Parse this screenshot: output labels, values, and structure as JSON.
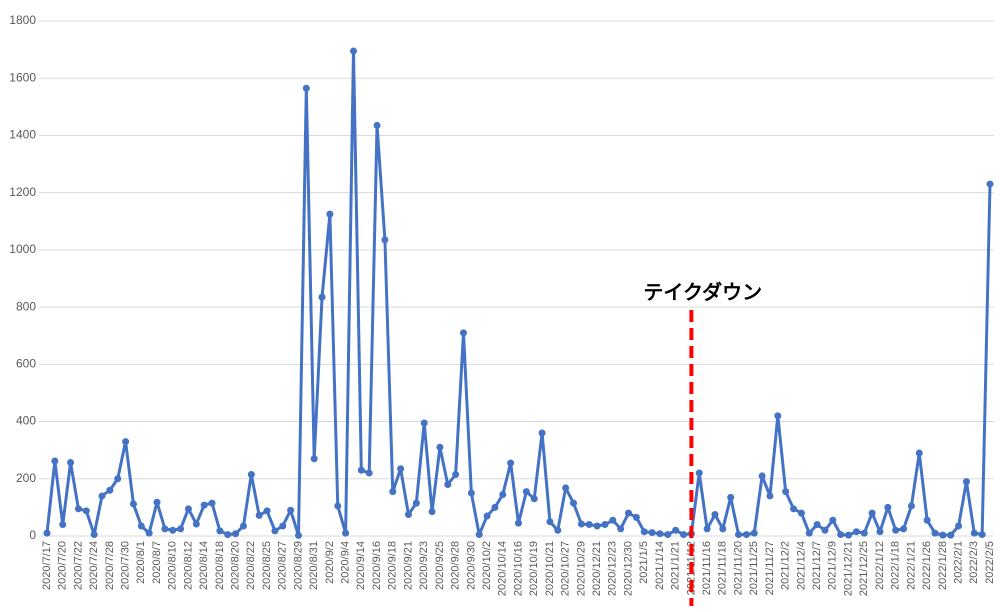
{
  "chart_data": {
    "type": "line",
    "categories": [
      "2020/7/17",
      null,
      "2020/7/20",
      null,
      "2020/7/22",
      null,
      "2020/7/24",
      null,
      "2020/7/28",
      null,
      "2020/7/30",
      null,
      "2020/8/1",
      null,
      "2020/8/7",
      null,
      "2020/8/10",
      null,
      "2020/8/12",
      null,
      "2020/8/14",
      null,
      "2020/8/18",
      null,
      "2020/8/20",
      null,
      "2020/8/22",
      null,
      "2020/8/25",
      null,
      "2020/8/27",
      null,
      "2020/8/29",
      null,
      "2020/8/31",
      null,
      "2020/9/2",
      null,
      "2020/9/4",
      null,
      "2020/9/14",
      null,
      "2020/9/16",
      null,
      "2020/9/18",
      null,
      "2020/9/21",
      null,
      "2020/9/23",
      null,
      "2020/9/25",
      null,
      "2020/9/28",
      null,
      "2020/9/30",
      null,
      "2020/10/2",
      null,
      "2020/10/14",
      null,
      "2020/10/16",
      null,
      "2020/10/19",
      null,
      "2020/10/21",
      null,
      "2020/10/27",
      null,
      "2020/10/29",
      null,
      "2020/12/21",
      null,
      "2020/12/23",
      null,
      "2020/12/30",
      null,
      "2021/1/5",
      null,
      "2021/1/14",
      null,
      "2021/1/21",
      null,
      "2021/11/12",
      null,
      "2021/11/16",
      null,
      "2021/11/18",
      null,
      "2021/11/20",
      null,
      "2021/11/25",
      null,
      "2021/11/27",
      null,
      "2021/12/2",
      null,
      "2021/12/4",
      null,
      "2021/12/7",
      null,
      "2021/12/9",
      null,
      "2021/12/21",
      null,
      "2021/12/25",
      null,
      "2022/1/12",
      null,
      "2022/1/18",
      null,
      "2022/1/21",
      null,
      "2022/1/26",
      null,
      "2022/1/28",
      null,
      "2022/2/1",
      null,
      "2022/2/3",
      null,
      "2022/2/5"
    ],
    "values": [
      10,
      262,
      40,
      257,
      95,
      88,
      5,
      140,
      160,
      200,
      330,
      112,
      35,
      10,
      118,
      25,
      20,
      25,
      95,
      42,
      108,
      115,
      18,
      5,
      8,
      35,
      215,
      72,
      88,
      18,
      35,
      90,
      2,
      1565,
      270,
      835,
      1125,
      105,
      10,
      1695,
      230,
      220,
      1435,
      1035,
      155,
      235,
      75,
      115,
      395,
      85,
      310,
      180,
      215,
      710,
      150,
      5,
      70,
      100,
      145,
      255,
      45,
      155,
      130,
      360,
      50,
      20,
      168,
      115,
      42,
      40,
      35,
      40,
      55,
      25,
      80,
      65,
      15,
      12,
      8,
      5,
      20,
      5,
      8,
      220,
      25,
      75,
      25,
      135,
      5,
      5,
      10,
      210,
      140,
      420,
      155,
      95,
      80,
      10,
      40,
      20,
      55,
      5,
      3,
      15,
      10,
      80,
      15,
      100,
      20,
      25,
      105,
      290,
      55,
      10,
      3,
      3,
      35,
      190,
      10,
      5,
      1230
    ],
    "color": "#4472c4",
    "ylim": [
      0,
      1800
    ],
    "yticks": [
      0,
      200,
      400,
      600,
      800,
      1000,
      1200,
      1400,
      1600,
      1800
    ],
    "grid": true,
    "annotation": {
      "text": "テイクダウン",
      "x": "2021/11/12",
      "color": "#ff0000"
    }
  }
}
